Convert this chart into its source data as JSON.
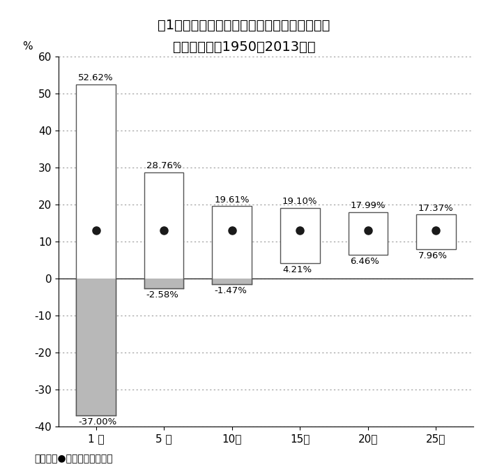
{
  "title_line1": "図1　株式投資の投資期間と年平均リターンの",
  "title_line2": "ちらばり方（1950～2013年）",
  "categories": [
    "1 年",
    "5 年",
    "10年",
    "15年",
    "20年",
    "25年"
  ],
  "top_values": [
    52.62,
    28.76,
    19.61,
    19.1,
    17.99,
    17.37
  ],
  "bottom_values": [
    -37.0,
    -2.58,
    -1.47,
    4.21,
    6.46,
    7.96
  ],
  "mean_values": [
    13.0,
    13.0,
    13.0,
    13.0,
    13.0,
    13.0
  ],
  "top_labels": [
    "52.62%",
    "28.76%",
    "19.61%",
    "19.10%",
    "17.99%",
    "17.37%"
  ],
  "bottom_labels": [
    "-37.00%",
    "-2.58%",
    "-1.47%",
    "4.21%",
    "6.46%",
    "7.96%"
  ],
  "ylabel": "%",
  "ylim_min": -40,
  "ylim_max": 60,
  "yticks": [
    -40,
    -30,
    -20,
    -10,
    0,
    10,
    20,
    30,
    40,
    50,
    60
  ],
  "note": "（注）　●は平均値を示す。",
  "box_width": 0.58,
  "box_facecolor_positive": "#ffffff",
  "box_facecolor_negative": "#b8b8b8",
  "box_edgecolor": "#555555",
  "mean_dot_color": "#1a1a1a",
  "grid_color": "#999999",
  "background_color": "#ffffff",
  "title_fontsize": 14,
  "axis_fontsize": 11,
  "label_fontsize": 9.5,
  "note_fontsize": 10,
  "title_prefix": "図1",
  "title_main1": "株式投資の投資期間と年平均リターンの",
  "title_main2": "ちらばり方　（1950～2013年）"
}
